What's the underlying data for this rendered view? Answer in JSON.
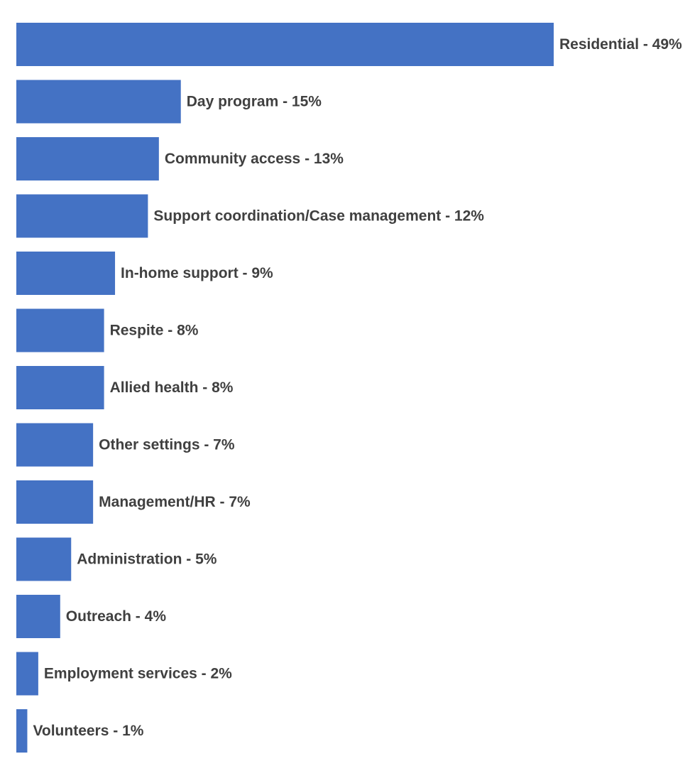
{
  "chart_data": {
    "type": "bar",
    "orientation": "horizontal",
    "categories": [
      "Residential",
      "Day program",
      "Community access",
      "Support coordination/Case management",
      "In-home support",
      "Respite",
      "Allied health",
      "Other settings",
      "Management/HR",
      "Administration",
      "Outreach",
      "Employment services",
      "Volunteers"
    ],
    "values": [
      49,
      15,
      13,
      12,
      9,
      8,
      8,
      7,
      7,
      5,
      4,
      2,
      1
    ],
    "labels": [
      "Residential - 49%",
      "Day program - 15%",
      "Community access - 13%",
      "Support coordination/Case management - 12%",
      "In-home support - 9%",
      "Respite - 8%",
      "Allied health - 8%",
      "Other settings - 7%",
      "Management/HR - 7%",
      "Administration - 5%",
      "Outreach - 4%",
      "Employment services - 2%",
      "Volunteers - 1%"
    ],
    "unit": "%",
    "bar_color": "#4472c4",
    "label_color": "#404040",
    "xlim": [
      0,
      49
    ],
    "grid": false,
    "legend": false
  }
}
